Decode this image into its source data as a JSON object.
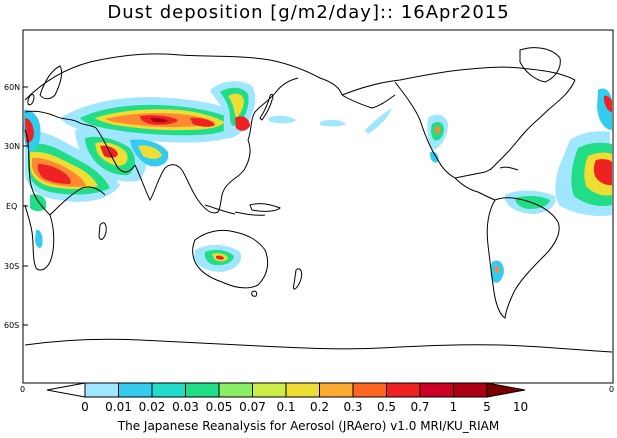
{
  "title": "Dust deposition [g/m2/day]:: 16Apr2015",
  "credit": "The Japanese Reanalysis for Aerosol (JRAero) v1.0 MRI/KU_RIAM",
  "lat_labels": [
    "60N",
    "30N",
    "EQ",
    "30S",
    "60S"
  ],
  "x_axis_end_labels": [
    "0",
    "0"
  ],
  "colorbar": {
    "labels": [
      "0",
      "0.01",
      "0.02",
      "0.03",
      "0.05",
      "0.07",
      "0.1",
      "0.2",
      "0.3",
      "0.5",
      "0.7",
      "1",
      "5",
      "10"
    ],
    "colors": [
      "#ffffff",
      "#a0e6ff",
      "#33ccee",
      "#22ddcc",
      "#22dd88",
      "#88ee66",
      "#ccee44",
      "#eedd33",
      "#ffaa33",
      "#ff6622",
      "#ee2222",
      "#cc0022",
      "#aa0011",
      "#7a0000"
    ]
  },
  "map_colors": {
    "coast": "#000000",
    "light": "#a0e6ff",
    "cyan": "#33ccee",
    "teal": "#22dd88",
    "yellow": "#eedd33",
    "orange": "#ff8833",
    "red": "#ee2222",
    "darkred": "#aa0011"
  }
}
